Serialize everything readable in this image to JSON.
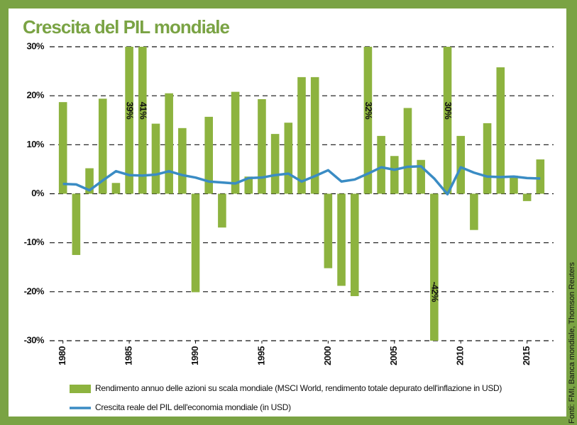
{
  "chart_data": {
    "type": "bar_line",
    "title": "Crescita del PIL mondiale",
    "source": "Fonti: FMI, Banca mondiale, Thomson Reuters",
    "x": [
      1980,
      1981,
      1982,
      1983,
      1984,
      1985,
      1986,
      1987,
      1988,
      1989,
      1990,
      1991,
      1992,
      1993,
      1994,
      1995,
      1996,
      1997,
      1998,
      1999,
      2000,
      2001,
      2002,
      2003,
      2004,
      2005,
      2006,
      2007,
      2008,
      2009,
      2010,
      2011,
      2012,
      2013,
      2014,
      2015,
      2016
    ],
    "xlim": [
      1979,
      2017
    ],
    "xticks": [
      1980,
      1985,
      1990,
      1995,
      2000,
      2005,
      2010,
      2015
    ],
    "ylim": [
      -30,
      30
    ],
    "yticks": [
      {
        "value": 30,
        "label": "30%"
      },
      {
        "value": 20,
        "label": "20%"
      },
      {
        "value": 10,
        "label": "10%"
      },
      {
        "value": 0,
        "label": "0%"
      },
      {
        "value": -10,
        "label": "-10%"
      },
      {
        "value": -20,
        "label": "-20%"
      },
      {
        "value": -30,
        "label": "-30%"
      }
    ],
    "grid": true,
    "series": [
      {
        "name": "Rendimento annuo delle azioni su scala mondiale (MSCI World, rendimento totale depurato dell'inflazione in USD)",
        "kind": "bar",
        "color": "#8db33f",
        "values": [
          18.7,
          -12.5,
          5.2,
          19.4,
          2.2,
          39,
          41,
          14.3,
          20.5,
          13.4,
          -20.1,
          15.7,
          -6.9,
          20.8,
          3.5,
          19.3,
          12.2,
          14.5,
          23.8,
          23.8,
          -15.2,
          -18.8,
          -20.9,
          32,
          11.8,
          7.7,
          17.5,
          6.9,
          -42,
          30,
          11.8,
          -7.4,
          14.4,
          25.8,
          3.7,
          -1.5,
          7
        ],
        "value_labels": [
          null,
          null,
          null,
          null,
          null,
          "39%",
          "41%",
          null,
          null,
          null,
          null,
          null,
          null,
          null,
          null,
          null,
          null,
          null,
          null,
          null,
          null,
          null,
          null,
          "32%",
          null,
          null,
          null,
          null,
          "-42%",
          "30%",
          null,
          null,
          null,
          null,
          null,
          null,
          null
        ]
      },
      {
        "name": "Crescita reale del PIL dell'economia mondiale (in USD)",
        "kind": "line",
        "color": "#3a8cc4",
        "values": [
          2.0,
          1.9,
          0.7,
          2.7,
          4.6,
          3.8,
          3.7,
          3.9,
          4.6,
          3.8,
          3.3,
          2.5,
          2.3,
          2.1,
          3.2,
          3.3,
          3.8,
          4.1,
          2.5,
          3.6,
          4.8,
          2.5,
          2.9,
          4.1,
          5.4,
          4.9,
          5.5,
          5.6,
          3.1,
          -0.1,
          5.4,
          4.3,
          3.5,
          3.4,
          3.5,
          3.2,
          3.1
        ]
      }
    ]
  }
}
